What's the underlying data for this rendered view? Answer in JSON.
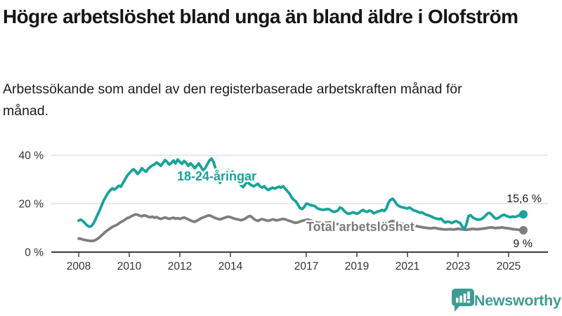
{
  "header": {
    "title": "Högre arbetslöshet bland unga än bland äldre i Olofström",
    "subtitle": "Arbetssökande som andel av den registerbaserade arbetskraften månad för månad."
  },
  "chart_data": {
    "type": "line",
    "title": "Högre arbetslöshet bland unga än bland äldre i Olofström",
    "x_unit": "month",
    "x_start": "2008-01",
    "x_end": "2025-08",
    "x_tick_years": [
      2008,
      2010,
      2012,
      2014,
      2017,
      2019,
      2021,
      2023,
      2025
    ],
    "y_ticks": [
      {
        "value": 0,
        "label": "0 %"
      },
      {
        "value": 20,
        "label": "20 %"
      },
      {
        "value": 40,
        "label": "40 %"
      }
    ],
    "ylim": [
      0,
      42
    ],
    "grid": "horizontal",
    "legend_position": "inline-labels",
    "series": [
      {
        "name": "18-24-åringar",
        "color": "#18a29a",
        "end_value": 15.6,
        "end_label": "15,6 %",
        "values": [
          13.0,
          13.4,
          12.8,
          11.9,
          11.0,
          10.5,
          10.7,
          11.8,
          13.5,
          15.5,
          17.3,
          19.5,
          21.5,
          23.0,
          24.5,
          25.5,
          26.3,
          25.8,
          26.5,
          27.4,
          27.0,
          28.5,
          30.0,
          31.5,
          32.5,
          33.5,
          34.2,
          33.4,
          32.2,
          33.2,
          34.6,
          33.8,
          33.2,
          34.4,
          35.2,
          35.8,
          36.2,
          37.0,
          36.4,
          35.6,
          36.8,
          38.0,
          37.2,
          36.2,
          36.8,
          37.8,
          36.6,
          38.2,
          37.2,
          36.4,
          37.6,
          36.8,
          35.6,
          36.6,
          35.8,
          34.6,
          35.6,
          36.6,
          35.2,
          33.8,
          34.6,
          36.2,
          37.8,
          38.6,
          37.2,
          34.2,
          31.0,
          28.6,
          29.8,
          31.6,
          33.0,
          33.8,
          32.2,
          33.2,
          31.6,
          30.2,
          28.8,
          27.6,
          26.8,
          28.0,
          29.0,
          28.2,
          27.6,
          27.2,
          27.6,
          28.2,
          27.2,
          26.6,
          27.2,
          26.2,
          25.6,
          26.2,
          26.6,
          26.2,
          26.6,
          27.0,
          26.6,
          27.2,
          26.2,
          25.2,
          24.2,
          22.6,
          21.6,
          21.0,
          19.6,
          18.2,
          17.8,
          18.6,
          20.0,
          19.8,
          19.4,
          19.2,
          19.0,
          18.2,
          17.8,
          17.6,
          17.4,
          17.6,
          17.8,
          17.6,
          17.0,
          16.6,
          16.8,
          17.2,
          18.4,
          18.0,
          17.0,
          16.2,
          15.8,
          16.0,
          16.4,
          16.2,
          15.8,
          16.2,
          17.0,
          17.4,
          16.8,
          16.6,
          17.2,
          16.8,
          16.0,
          16.4,
          16.8,
          17.0,
          17.4,
          17.0,
          18.0,
          20.4,
          21.6,
          22.0,
          21.0,
          19.6,
          19.0,
          18.6,
          18.4,
          18.2,
          18.0,
          18.4,
          17.8,
          17.2,
          17.0,
          16.6,
          16.2,
          16.4,
          15.8,
          15.4,
          15.2,
          14.8,
          14.4,
          14.0,
          13.8,
          13.6,
          13.8,
          12.8,
          12.2,
          12.6,
          12.4,
          12.0,
          12.4,
          12.8,
          12.4,
          12.0,
          10.6,
          9.3,
          11.6,
          14.9,
          15.2,
          14.3,
          13.8,
          13.5,
          13.4,
          13.6,
          14.2,
          15.0,
          15.9,
          16.2,
          15.4,
          14.4,
          13.8,
          14.0,
          14.6,
          15.2,
          15.4,
          14.9,
          14.6,
          14.4,
          14.7,
          14.5,
          14.8,
          15.2,
          15.0,
          15.6
        ]
      },
      {
        "name": "Total arbetslöshet",
        "color": "#7e7e7e",
        "end_value": 9.0,
        "end_label": "9 %",
        "values": [
          5.6,
          5.5,
          5.2,
          5.0,
          4.8,
          4.7,
          4.6,
          4.7,
          5.0,
          5.5,
          6.2,
          7.0,
          7.8,
          8.6,
          9.2,
          9.8,
          10.4,
          10.8,
          11.2,
          11.8,
          12.4,
          12.8,
          13.4,
          14.0,
          14.3,
          14.8,
          15.2,
          15.6,
          15.4,
          15.0,
          14.8,
          15.2,
          15.0,
          14.6,
          14.4,
          14.6,
          14.2,
          14.5,
          14.0,
          13.7,
          14.0,
          14.3,
          14.0,
          13.7,
          14.0,
          14.2,
          13.8,
          14.0,
          13.7,
          14.0,
          14.3,
          13.9,
          13.5,
          13.1,
          12.7,
          12.5,
          12.9,
          13.4,
          13.9,
          14.3,
          14.6,
          15.0,
          15.2,
          14.8,
          14.4,
          14.0,
          13.7,
          13.5,
          13.8,
          14.1,
          14.4,
          14.6,
          14.4,
          14.1,
          13.8,
          13.6,
          13.4,
          13.2,
          13.4,
          13.8,
          14.4,
          14.9,
          14.6,
          13.8,
          13.2,
          12.9,
          13.3,
          13.6,
          13.4,
          13.1,
          12.9,
          13.2,
          13.5,
          13.3,
          13.1,
          13.3,
          13.5,
          13.7,
          13.5,
          13.2,
          12.9,
          12.6,
          12.3,
          12.1,
          12.3,
          12.6,
          12.9,
          13.1,
          13.3,
          13.4,
          13.1,
          12.8,
          12.5,
          12.2,
          12.0,
          12.2,
          12.4,
          12.2,
          12.1,
          12.3,
          12.0,
          11.8,
          11.6,
          11.5,
          11.3,
          11.1,
          11.0,
          11.1,
          11.3,
          11.2,
          11.1,
          11.2,
          11.0,
          10.9,
          10.8,
          10.7,
          10.8,
          10.9,
          11.0,
          10.8,
          10.6,
          10.7,
          10.9,
          11.1,
          11.2,
          11.1,
          11.6,
          12.2,
          12.6,
          12.8,
          12.6,
          12.3,
          12.0,
          11.8,
          11.6,
          11.5,
          11.4,
          11.5,
          11.2,
          11.0,
          10.8,
          10.6,
          10.4,
          10.3,
          10.1,
          10.0,
          9.9,
          9.8,
          9.9,
          10.0,
          9.8,
          9.6,
          9.5,
          9.4,
          9.3,
          9.4,
          9.5,
          9.4,
          9.3,
          9.5,
          9.6,
          9.5,
          9.4,
          9.3,
          9.2,
          9.3,
          9.5,
          9.6,
          9.5,
          9.4,
          9.5,
          9.6,
          9.7,
          9.8,
          10.0,
          10.1,
          10.2,
          10.0,
          9.9,
          10.0,
          10.1,
          10.2,
          10.0,
          9.9,
          9.8,
          9.6,
          9.5,
          9.4,
          9.3,
          9.2,
          9.1,
          9.0
        ]
      }
    ]
  },
  "footer": {
    "brand": "Newsworthy"
  },
  "colors": {
    "accent_teal": "#18a29a",
    "line_gray": "#7e7e7e",
    "axis": "#3d3d3d",
    "grid": "#dcdcdc",
    "logo_teal": "#3f9c94",
    "text": "#151515"
  }
}
